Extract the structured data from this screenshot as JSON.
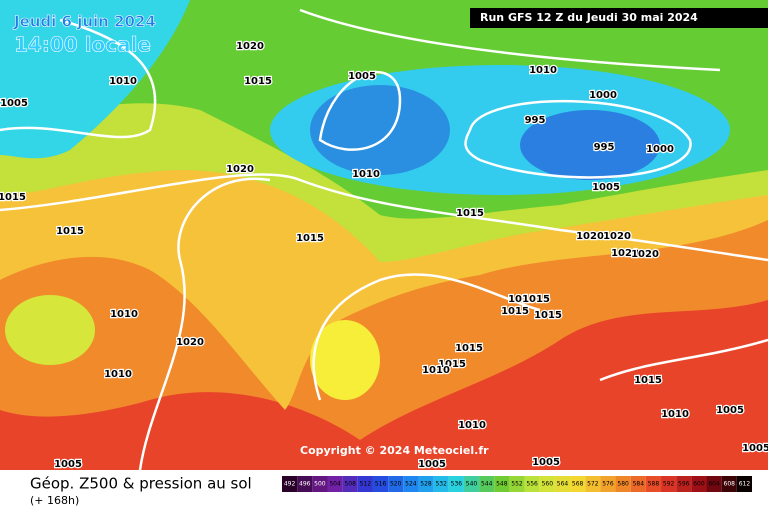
{
  "header": {
    "date": "Jeudi 6 juin 2024",
    "time": "14:00 locale",
    "run": "Run GFS 12 Z du Jeudi 30 mai 2024"
  },
  "isobars": {
    "labels": [
      "1020",
      "1015",
      "1010",
      "1005",
      "1005",
      "1010",
      "1000",
      "995",
      "995",
      "1000",
      "1005",
      "1020",
      "1015",
      "1010",
      "1015",
      "1015",
      "1015",
      "1020",
      "1020",
      "1020",
      "1020",
      "1015",
      "1015",
      "1015",
      "1010",
      "1020",
      "1015",
      "1015",
      "1015",
      "1010",
      "1015",
      "1010",
      "1005",
      "1010",
      "1010",
      "1005",
      "1005",
      "1005",
      "1005"
    ]
  },
  "copyright": "Copyright © 2024 Meteociel.fr",
  "legend": {
    "title": "Géop. Z500 & pression au sol",
    "subtitle": "(+ 168h)",
    "levels": [
      492,
      496,
      500,
      504,
      508,
      512,
      516,
      520,
      524,
      528,
      532,
      536,
      540,
      544,
      548,
      552,
      556,
      560,
      564,
      568,
      572,
      576,
      580,
      584,
      588,
      592,
      596,
      600,
      604,
      608,
      612
    ]
  }
}
